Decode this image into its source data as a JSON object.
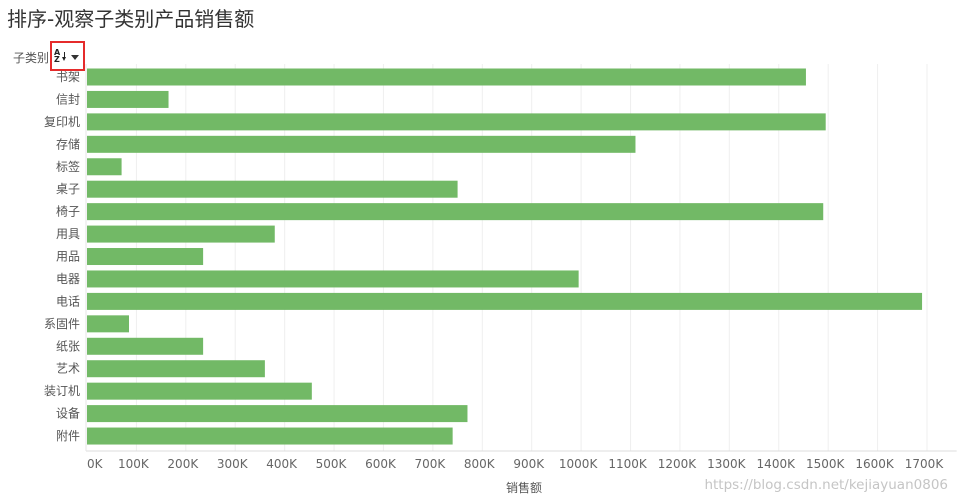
{
  "colors": {
    "bar": "#72b966",
    "title": "#333333",
    "highlight": "#e52b2b"
  },
  "header": {
    "sort_icon": "sort-az-icon",
    "sort_icon_top": "A",
    "sort_icon_bottom": "Z",
    "caret_icon": "dropdown-caret-icon"
  },
  "chart_data": {
    "type": "bar",
    "orientation": "horizontal",
    "title": "排序-观察子类别产品销售额",
    "ylabel": "子类别",
    "xlabel": "销售额",
    "categories": [
      "书架",
      "信封",
      "复印机",
      "存储",
      "标签",
      "桌子",
      "椅子",
      "用具",
      "用品",
      "电器",
      "电话",
      "系固件",
      "纸张",
      "艺术",
      "装订机",
      "设备",
      "附件"
    ],
    "values": [
      1455000,
      165000,
      1495000,
      1110000,
      70000,
      750000,
      1490000,
      380000,
      235000,
      995000,
      1690000,
      85000,
      235000,
      360000,
      455000,
      770000,
      740000
    ],
    "xlim": [
      0,
      1760000
    ],
    "xtick_values": [
      0,
      100000,
      200000,
      300000,
      400000,
      500000,
      600000,
      700000,
      800000,
      900000,
      1000000,
      1100000,
      1200000,
      1300000,
      1400000,
      1500000,
      1600000,
      1700000
    ],
    "xtick_labels": [
      "0K",
      "100K",
      "200K",
      "300K",
      "400K",
      "500K",
      "600K",
      "700K",
      "800K",
      "900K",
      "1000K",
      "1100K",
      "1200K",
      "1300K",
      "1400K",
      "1500K",
      "1600K",
      "1700K"
    ],
    "grid": true
  },
  "watermark": "https://blog.csdn.net/kejiayuan0806"
}
